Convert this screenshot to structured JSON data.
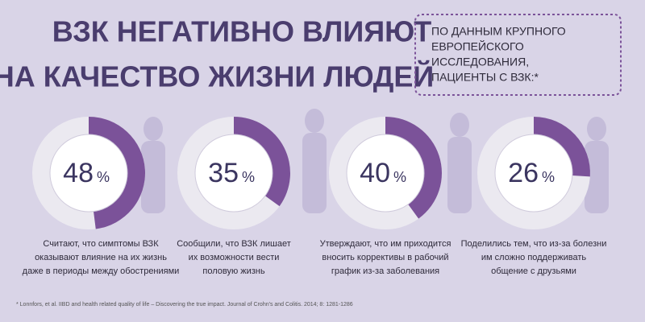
{
  "title": [
    "ВЗК НЕГАТИВНО ВЛИЯЮТ",
    "НА КАЧЕСТВО ЖИЗНИ ЛЮДЕЙ"
  ],
  "note": [
    "ПО ДАННЫМ КРУПНОГО",
    "ЕВРОПЕЙСКОГО",
    "ИССЛЕДОВАНИЯ,",
    "ПАЦИЕНТЫ С ВЗК:*"
  ],
  "chart_data": [
    {
      "type": "donut",
      "values": [
        48
      ],
      "unit": "%",
      "color": "#7b5299",
      "caption": [
        "Считают, что симптомы ВЗК",
        "оказывают влияние на их жизнь",
        "даже в периоды между обострениями"
      ]
    },
    {
      "type": "donut",
      "values": [
        35
      ],
      "unit": "%",
      "color": "#7b5299",
      "caption": [
        "Сообщили, что ВЗК лишает",
        "их возможности вести",
        "половую жизнь"
      ]
    },
    {
      "type": "donut",
      "values": [
        40
      ],
      "unit": "%",
      "color": "#7b5299",
      "caption": [
        "Утверждают, что им приходится",
        "вносить коррективы в рабочий",
        "график из-за заболевания"
      ]
    },
    {
      "type": "donut",
      "values": [
        26
      ],
      "unit": "%",
      "color": "#7b5299",
      "caption": [
        "Поделились тем, что из-за болезни",
        "им сложно поддерживать",
        "общение с друзьями"
      ]
    }
  ],
  "footnote": "* Lonnfors, et al. IIBD and health related quality of life – Discovering the true impact. Journal of Crohn's and Colitis. 2014; 8: 1281-1286"
}
